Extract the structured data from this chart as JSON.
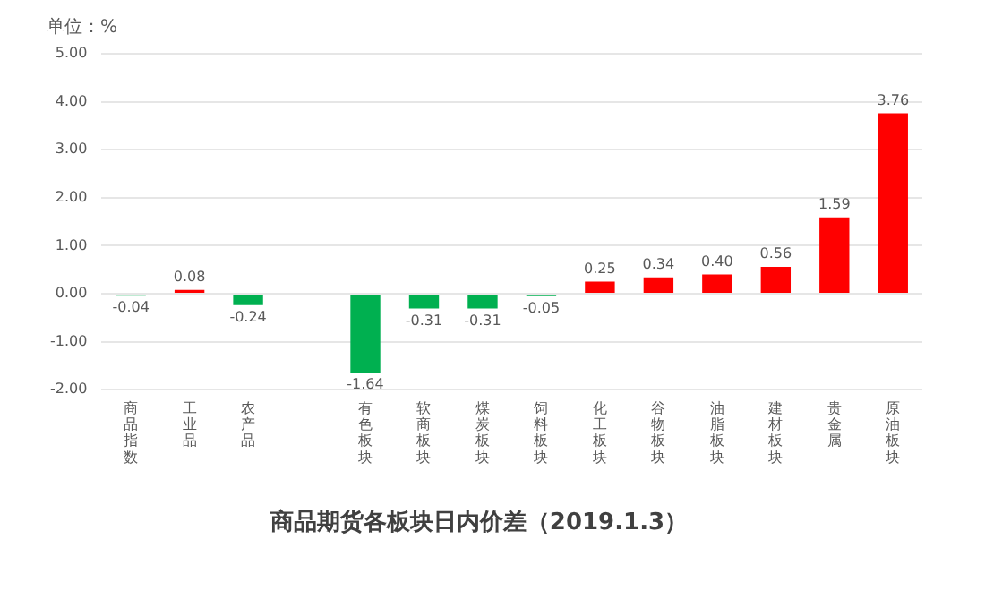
{
  "chart_data": {
    "type": "bar",
    "title": "商品期货各板块日内价差（2019.1.3）",
    "ylabel": "单位：%",
    "categories": [
      "商品指数",
      "工业品",
      "农产品",
      null,
      "有色板块",
      "软商板块",
      "煤炭板块",
      "饲料板块",
      "化工板块",
      "谷物板块",
      "油脂板块",
      "建材板块",
      "贵金属",
      "原油板块"
    ],
    "values": [
      -0.04,
      0.08,
      -0.24,
      null,
      -1.64,
      -0.31,
      -0.31,
      -0.05,
      0.25,
      0.34,
      0.4,
      0.56,
      1.59,
      3.76
    ],
    "colors": [
      "#00b050",
      "#ff0000",
      "#00b050",
      null,
      "#00b050",
      "#00b050",
      "#00b050",
      "#00b050",
      "#ff0000",
      "#ff0000",
      "#ff0000",
      "#ff0000",
      "#ff0000",
      "#ff0000"
    ],
    "value_labels": [
      "-0.04",
      "0.08",
      "-0.24",
      null,
      "-1.64",
      "-0.31",
      "-0.31",
      "-0.05",
      "0.25",
      "0.34",
      "0.40",
      "0.56",
      "1.59",
      "3.76"
    ],
    "ylim": [
      -2,
      5
    ],
    "yticks": [
      {
        "value": -2,
        "label": "-2.00"
      },
      {
        "value": -1,
        "label": "-1.00"
      },
      {
        "value": 0,
        "label": "0.00"
      },
      {
        "value": 1,
        "label": "1.00"
      },
      {
        "value": 2,
        "label": "2.00"
      },
      {
        "value": 3,
        "label": "3.00"
      },
      {
        "value": 4,
        "label": "4.00"
      },
      {
        "value": 5,
        "label": "5.00"
      }
    ],
    "grid": "y",
    "legend": false
  }
}
